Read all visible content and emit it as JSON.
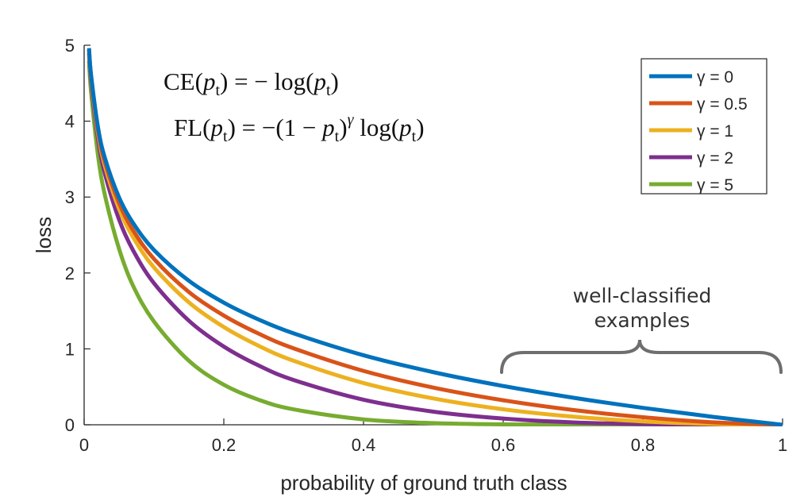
{
  "chart_data": {
    "type": "line",
    "title": "",
    "xlabel": "probability of ground truth class",
    "ylabel": "loss",
    "xlim": [
      0,
      1
    ],
    "ylim": [
      0,
      5
    ],
    "xticks": [
      "0",
      "0.2",
      "0.4",
      "0.6",
      "0.8",
      "1"
    ],
    "yticks": [
      "0",
      "1",
      "2",
      "3",
      "4",
      "5"
    ],
    "grid": false,
    "legend_position": "top-right",
    "x": [
      0.007,
      0.01,
      0.02,
      0.03,
      0.05,
      0.07,
      0.1,
      0.15,
      0.2,
      0.25,
      0.3,
      0.4,
      0.5,
      0.6,
      0.7,
      0.8,
      0.9,
      1.0
    ],
    "series": [
      {
        "name": "γ = 0",
        "gamma": 0,
        "color": "#0072BD",
        "values": [
          4.962,
          4.605,
          3.912,
          3.507,
          2.996,
          2.659,
          2.303,
          1.897,
          1.609,
          1.386,
          1.204,
          0.916,
          0.693,
          0.511,
          0.357,
          0.223,
          0.105,
          0
        ]
      },
      {
        "name": "γ = 0.5",
        "gamma": 0.5,
        "color": "#D95319",
        "values": [
          4.945,
          4.582,
          3.873,
          3.454,
          2.92,
          2.564,
          2.185,
          1.749,
          1.439,
          1.2,
          1.007,
          0.71,
          0.49,
          0.323,
          0.195,
          0.1,
          0.033,
          0
        ]
      },
      {
        "name": "γ = 1",
        "gamma": 1,
        "color": "#EDB120",
        "values": [
          4.927,
          4.559,
          3.834,
          3.402,
          2.846,
          2.473,
          2.072,
          1.613,
          1.288,
          1.04,
          0.843,
          0.55,
          0.347,
          0.204,
          0.107,
          0.045,
          0.011,
          0
        ]
      },
      {
        "name": "γ = 2",
        "gamma": 2,
        "color": "#7E2F8E",
        "values": [
          4.893,
          4.513,
          3.757,
          3.299,
          2.704,
          2.3,
          1.865,
          1.371,
          1.03,
          0.78,
          0.59,
          0.33,
          0.173,
          0.082,
          0.032,
          0.009,
          0.001,
          0
        ]
      },
      {
        "name": "γ = 5",
        "gamma": 5,
        "color": "#77AC30",
        "values": [
          4.791,
          4.38,
          3.539,
          3.015,
          2.318,
          1.833,
          1.36,
          0.843,
          0.527,
          0.329,
          0.203,
          0.071,
          0.022,
          0.005,
          0.001,
          0.0,
          0.0,
          0
        ]
      }
    ],
    "annotations": {
      "ce_formula": "CE(pt) = − log(pt)",
      "fl_formula": "FL(pt) = −(1 − pt)^γ log(pt)",
      "bracket_label_line1": "well-classified",
      "bracket_label_line2": "examples",
      "bracket_range": [
        0.6,
        1.0
      ]
    }
  }
}
